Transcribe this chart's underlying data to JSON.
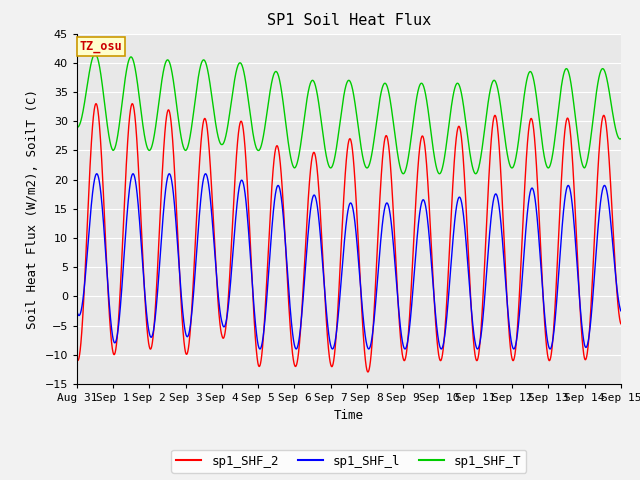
{
  "title": "SP1 Soil Heat Flux",
  "xlabel": "Time",
  "ylabel": "Soil Heat Flux (W/m2), SoilT (C)",
  "ylim": [
    -15,
    45
  ],
  "tz_label": "TZ_osu",
  "legend_entries": [
    "sp1_SHF_2",
    "sp1_SHF_l",
    "sp1_SHF_T"
  ],
  "legend_colors": [
    "#ff0000",
    "#0000ff",
    "#00cc00"
  ],
  "background_color": "#e8e8e8",
  "title_fontsize": 11,
  "axis_label_fontsize": 9,
  "tick_fontsize": 8,
  "tick_labels": [
    "Aug 31",
    "Sep 1",
    "Sep 2",
    "Sep 3",
    "Sep 4",
    "Sep 5",
    "Sep 6",
    "Sep 7",
    "Sep 8",
    "Sep 9",
    "Sep 10",
    "Sep 11",
    "Sep 12",
    "Sep 13",
    "Sep 14",
    "Sep 15"
  ],
  "shf2_peaks": [
    33,
    33,
    33,
    31,
    30,
    30,
    22,
    27,
    27,
    28,
    27,
    31,
    31,
    30,
    31,
    31
  ],
  "shf2_troughs": [
    -11,
    -10,
    -9,
    -10,
    -7,
    -12,
    -12,
    -12,
    -13,
    -11,
    -11,
    -11,
    -11,
    -11,
    -11,
    -5
  ],
  "shf1_peaks": [
    21,
    21,
    21,
    21,
    21,
    19,
    19,
    16,
    16,
    16,
    17,
    17,
    18,
    19,
    19,
    19
  ],
  "shf1_troughs": [
    -3,
    -8,
    -7,
    -7,
    -5,
    -9,
    -9,
    -9,
    -9,
    -9,
    -9,
    -9,
    -9,
    -9,
    -9,
    -3
  ],
  "shfT_maxs": [
    41,
    42,
    40,
    41,
    40,
    40,
    37,
    37,
    37,
    36,
    37,
    36,
    38,
    39,
    39,
    39
  ],
  "shfT_mins": [
    29,
    25,
    25,
    25,
    26,
    25,
    22,
    22,
    22,
    21,
    21,
    21,
    22,
    22,
    22,
    27
  ],
  "shf2_phase": 0.28,
  "shf1_phase": 0.3,
  "shfT_phase": 0.25
}
